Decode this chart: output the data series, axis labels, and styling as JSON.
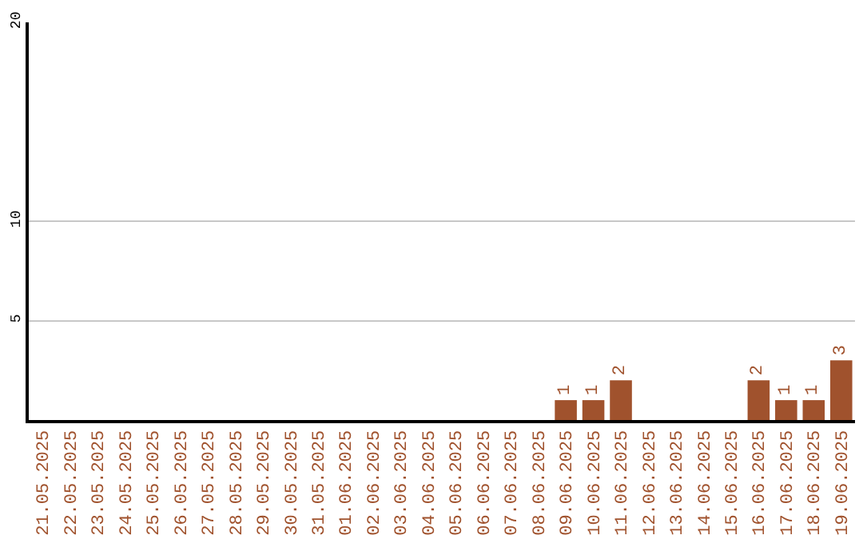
{
  "chart_data": {
    "type": "bar",
    "categories": [
      "21.05.2025",
      "22.05.2025",
      "23.05.2025",
      "24.05.2025",
      "25.05.2025",
      "26.05.2025",
      "27.05.2025",
      "28.05.2025",
      "29.05.2025",
      "30.05.2025",
      "31.05.2025",
      "01.06.2025",
      "02.06.2025",
      "03.06.2025",
      "04.06.2025",
      "05.06.2025",
      "06.06.2025",
      "07.06.2025",
      "08.06.2025",
      "09.06.2025",
      "10.06.2025",
      "11.06.2025",
      "12.06.2025",
      "13.06.2025",
      "14.06.2025",
      "15.06.2025",
      "16.06.2025",
      "17.06.2025",
      "18.06.2025",
      "19.06.2025"
    ],
    "values": [
      0,
      0,
      0,
      0,
      0,
      0,
      0,
      0,
      0,
      0,
      0,
      0,
      0,
      0,
      0,
      0,
      0,
      0,
      0,
      1,
      1,
      2,
      0,
      0,
      0,
      0,
      2,
      1,
      1,
      3
    ],
    "value_labels": [
      null,
      null,
      null,
      null,
      null,
      null,
      null,
      null,
      null,
      null,
      null,
      null,
      null,
      null,
      null,
      null,
      null,
      null,
      null,
      "1",
      "1",
      "2",
      null,
      null,
      null,
      null,
      "2",
      "1",
      "1",
      "3"
    ],
    "color": "#a0522d",
    "ylim": [
      0,
      20
    ],
    "yticks": [
      5,
      10,
      20
    ],
    "grid": "y",
    "legend": false
  }
}
